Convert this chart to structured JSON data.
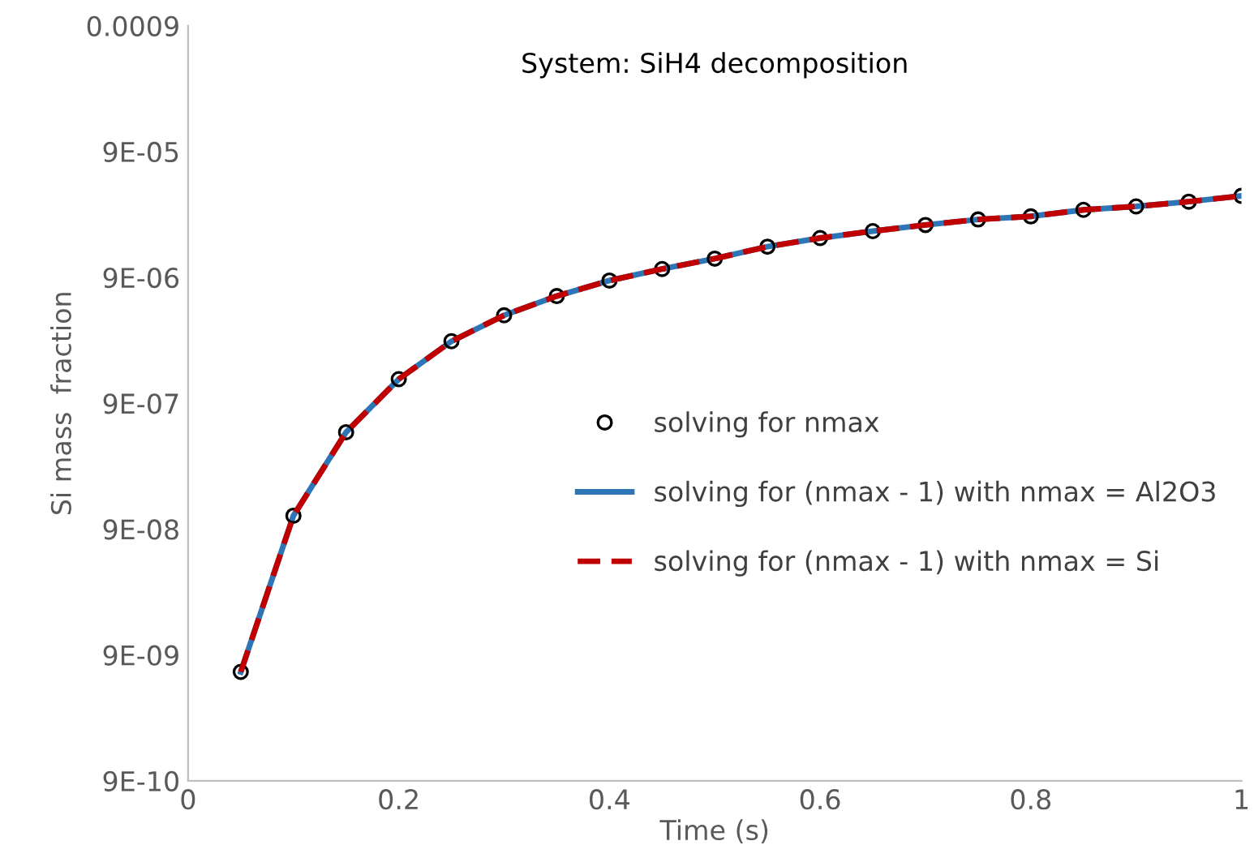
{
  "chart_data": {
    "type": "line",
    "title": "System: SiH4 decomposition",
    "xlabel": "Time (s)",
    "ylabel": "Si mass  fraction",
    "log": "y",
    "x": [
      0.05,
      0.1,
      0.15,
      0.2,
      0.25,
      0.3,
      0.35,
      0.4,
      0.45,
      0.5,
      0.55,
      0.6,
      0.65,
      0.7,
      0.75,
      0.8,
      0.85,
      0.9,
      0.95,
      1.0
    ],
    "series": [
      {
        "name": "solving for nmax",
        "type": "scatter",
        "marker": "circle",
        "color": "#000000",
        "values": [
          6.6e-09,
          1.15e-07,
          5.3e-07,
          1.4e-06,
          2.8e-06,
          4.5e-06,
          6.4e-06,
          8.5e-06,
          1.05e-05,
          1.27e-05,
          1.58e-05,
          1.85e-05,
          2.1e-05,
          2.35e-05,
          2.6e-05,
          2.75e-05,
          3.1e-05,
          3.3e-05,
          3.6e-05,
          4e-05
        ]
      },
      {
        "name": "solving for (nmax - 1) with nmax = Al2O3",
        "line_style": "solid",
        "color": "#2e75b6",
        "values": [
          6.6e-09,
          1.15e-07,
          5.3e-07,
          1.4e-06,
          2.8e-06,
          4.5e-06,
          6.4e-06,
          8.5e-06,
          1.05e-05,
          1.27e-05,
          1.58e-05,
          1.85e-05,
          2.1e-05,
          2.35e-05,
          2.6e-05,
          2.75e-05,
          3.1e-05,
          3.3e-05,
          3.6e-05,
          4e-05
        ]
      },
      {
        "name": "solving for (nmax - 1) with nmax = Si",
        "line_style": "dashed",
        "color": "#c00000",
        "values": [
          6.6e-09,
          1.15e-07,
          5.3e-07,
          1.4e-06,
          2.8e-06,
          4.5e-06,
          6.4e-06,
          8.5e-06,
          1.05e-05,
          1.27e-05,
          1.58e-05,
          1.85e-05,
          2.1e-05,
          2.35e-05,
          2.6e-05,
          2.75e-05,
          3.1e-05,
          3.3e-05,
          3.6e-05,
          4e-05
        ]
      }
    ],
    "xlim": [
      0,
      1
    ],
    "xticks": [
      0,
      0.2,
      0.4,
      0.6,
      0.8,
      1
    ],
    "ylim": [
      9e-10,
      0.0009
    ],
    "yticks": [
      {
        "value": 9e-10,
        "label": "9E-10"
      },
      {
        "value": 9e-09,
        "label": "9E-09"
      },
      {
        "value": 9e-08,
        "label": "9E-08"
      },
      {
        "value": 9e-07,
        "label": "9E-07"
      },
      {
        "value": 9e-06,
        "label": "9E-06"
      },
      {
        "value": 9e-05,
        "label": "9E-05"
      },
      {
        "value": 0.0009,
        "label": "0.0009"
      }
    ],
    "grid": false,
    "legend": "right"
  }
}
